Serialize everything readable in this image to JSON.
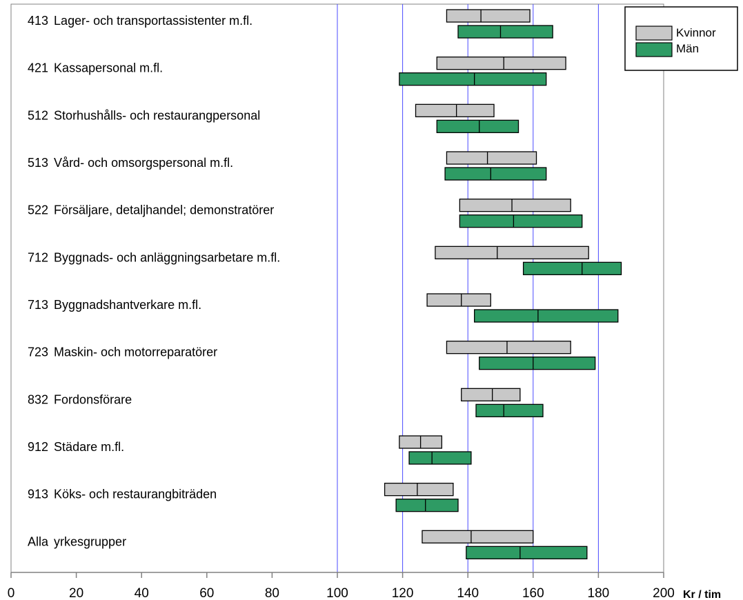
{
  "chart_data": {
    "type": "bar",
    "subtype": "range-bar",
    "x_unit_label": "Kr / tim",
    "xlim": [
      0,
      200
    ],
    "x_ticks": [
      0,
      20,
      40,
      60,
      80,
      100,
      120,
      140,
      160,
      180,
      200
    ],
    "gridlines_at": [
      100,
      120,
      140,
      160,
      180
    ],
    "legend": [
      {
        "name": "Kvinnor",
        "color": "#c8c8c8"
      },
      {
        "name": "Män",
        "color": "#2e9b64"
      }
    ],
    "legend_position": "top-right",
    "categories": [
      {
        "code": "413",
        "name": "Lager- och transportassistenter m.fl.",
        "kvinnor": {
          "low": 133.5,
          "median": 144,
          "high": 159
        },
        "man": {
          "low": 137,
          "median": 150,
          "high": 166
        }
      },
      {
        "code": "421",
        "name": "Kassapersonal m.fl.",
        "kvinnor": {
          "low": 130.5,
          "median": 151,
          "high": 170
        },
        "man": {
          "low": 119,
          "median": 142,
          "high": 164
        }
      },
      {
        "code": "512",
        "name": "Storhushålls- och restaurangpersonal",
        "kvinnor": {
          "low": 124,
          "median": 136.5,
          "high": 148
        },
        "man": {
          "low": 130.5,
          "median": 143.5,
          "high": 155.5
        }
      },
      {
        "code": "513",
        "name": "Vård- och omsorgspersonal m.fl.",
        "kvinnor": {
          "low": 133.5,
          "median": 146,
          "high": 161
        },
        "man": {
          "low": 133,
          "median": 147,
          "high": 164
        }
      },
      {
        "code": "522",
        "name": "Försäljare, detaljhandel; demonstratörer",
        "kvinnor": {
          "low": 137.5,
          "median": 153.5,
          "high": 171.5
        },
        "man": {
          "low": 137.5,
          "median": 154,
          "high": 175
        }
      },
      {
        "code": "712",
        "name": "Byggnads- och anläggningsarbetare m.fl.",
        "kvinnor": {
          "low": 130,
          "median": 149,
          "high": 177
        },
        "man": {
          "low": 157,
          "median": 175,
          "high": 187
        }
      },
      {
        "code": "713",
        "name": "Byggnadshantverkare m.fl.",
        "kvinnor": {
          "low": 127.5,
          "median": 138,
          "high": 147
        },
        "man": {
          "low": 142,
          "median": 161.5,
          "high": 186
        }
      },
      {
        "code": "723",
        "name": "Maskin- och motorreparatörer",
        "kvinnor": {
          "low": 133.5,
          "median": 152,
          "high": 171.5
        },
        "man": {
          "low": 143.5,
          "median": 160,
          "high": 179
        }
      },
      {
        "code": "832",
        "name": "Fordonsförare",
        "kvinnor": {
          "low": 138,
          "median": 147.5,
          "high": 156
        },
        "man": {
          "low": 142.5,
          "median": 151,
          "high": 163
        }
      },
      {
        "code": "912",
        "name": "Städare m.fl.",
        "kvinnor": {
          "low": 119,
          "median": 125.5,
          "high": 132
        },
        "man": {
          "low": 122,
          "median": 129,
          "high": 141
        }
      },
      {
        "code": "913",
        "name": "Köks- och restaurangbiträden",
        "kvinnor": {
          "low": 114.5,
          "median": 124.5,
          "high": 135.5
        },
        "man": {
          "low": 118,
          "median": 127,
          "high": 137
        }
      },
      {
        "code": "Alla",
        "name": "yrkesgrupper",
        "kvinnor": {
          "low": 126,
          "median": 141,
          "high": 160
        },
        "man": {
          "low": 139.5,
          "median": 156,
          "high": 176.5
        }
      }
    ]
  }
}
